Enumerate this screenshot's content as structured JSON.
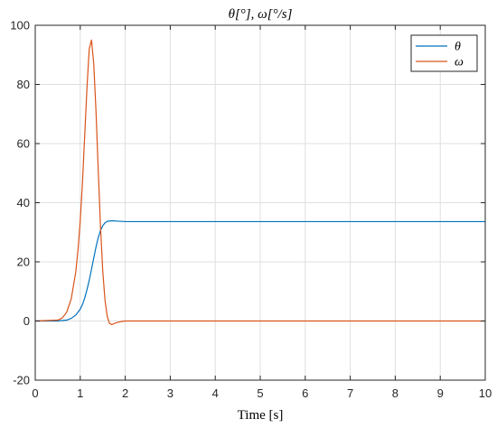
{
  "chart_data": {
    "type": "line",
    "title": "θ[°], ω[°/s]",
    "xlabel": "Time [s]",
    "ylabel": "",
    "xlim": [
      0,
      10
    ],
    "ylim": [
      -20,
      100
    ],
    "xticks": [
      0,
      1,
      2,
      3,
      4,
      5,
      6,
      7,
      8,
      9,
      10
    ],
    "yticks": [
      -20,
      0,
      20,
      40,
      60,
      80,
      100
    ],
    "xtick_labels": [
      "0",
      "1",
      "2",
      "3",
      "4",
      "5",
      "6",
      "7",
      "8",
      "9",
      "10"
    ],
    "ytick_labels": [
      "-20",
      "0",
      "20",
      "40",
      "60",
      "80",
      "100"
    ],
    "grid": true,
    "legend_position": "top-right",
    "series": [
      {
        "name": "θ",
        "color": "#0072BD",
        "x": [
          0,
          0.5,
          0.7,
          0.8,
          0.9,
          1.0,
          1.05,
          1.1,
          1.15,
          1.2,
          1.25,
          1.3,
          1.35,
          1.4,
          1.45,
          1.5,
          1.55,
          1.6,
          1.7,
          1.8,
          2.0,
          3.0,
          5.0,
          10.0
        ],
        "y": [
          0,
          0,
          0.3,
          0.9,
          2.0,
          4.0,
          5.6,
          7.8,
          10.6,
          13.8,
          17.5,
          21.3,
          25.0,
          28.2,
          30.6,
          32.2,
          33.2,
          33.7,
          33.9,
          33.8,
          33.6,
          33.6,
          33.6,
          33.6
        ]
      },
      {
        "name": "ω",
        "color": "#D95319",
        "x": [
          0,
          0.5,
          0.6,
          0.7,
          0.8,
          0.9,
          0.95,
          1.0,
          1.05,
          1.1,
          1.15,
          1.2,
          1.25,
          1.3,
          1.35,
          1.4,
          1.45,
          1.5,
          1.55,
          1.6,
          1.65,
          1.7,
          1.8,
          1.9,
          2.0,
          2.2,
          3.0,
          10.0
        ],
        "y": [
          0,
          0.3,
          1.0,
          3.0,
          7.5,
          16.5,
          24.0,
          34.0,
          47.0,
          63.0,
          79.0,
          92.0,
          95.0,
          87.0,
          71.0,
          51.0,
          32.0,
          17.0,
          7.0,
          1.5,
          -0.8,
          -1.2,
          -0.6,
          -0.2,
          0,
          0,
          0,
          0
        ]
      }
    ]
  }
}
